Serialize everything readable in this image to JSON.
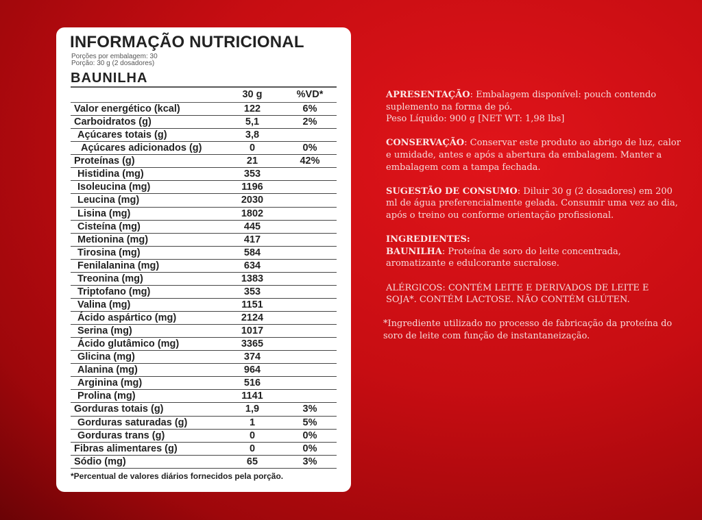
{
  "label": {
    "title": "INFORMAÇÃO NUTRICIONAL",
    "servings_per_package": "Porções por embalagem: 30",
    "serving": "Porção: 30 g (2 dosadores)",
    "flavor": "BAUNILHA",
    "col_amount": "30 g",
    "col_dv": "%VD*",
    "rows": [
      {
        "name": "Valor energético (kcal)",
        "value": "122",
        "dv": "6%",
        "indent": 0
      },
      {
        "name": "Carboidratos (g)",
        "value": "5,1",
        "dv": "2%",
        "indent": 0
      },
      {
        "name": "Açúcares totais (g)",
        "value": "3,8",
        "dv": "",
        "indent": 1
      },
      {
        "name": "Açúcares adicionados (g)",
        "value": "0",
        "dv": "0%",
        "indent": 2
      },
      {
        "name": "Proteínas (g)",
        "value": "21",
        "dv": "42%",
        "indent": 0
      },
      {
        "name": "Histidina (mg)",
        "value": "353",
        "dv": "",
        "indent": 1
      },
      {
        "name": "Isoleucina (mg)",
        "value": "1196",
        "dv": "",
        "indent": 1
      },
      {
        "name": "Leucina (mg)",
        "value": "2030",
        "dv": "",
        "indent": 1
      },
      {
        "name": "Lisina (mg)",
        "value": "1802",
        "dv": "",
        "indent": 1
      },
      {
        "name": "Cisteína (mg)",
        "value": "445",
        "dv": "",
        "indent": 1
      },
      {
        "name": "Metionina (mg)",
        "value": "417",
        "dv": "",
        "indent": 1
      },
      {
        "name": "Tirosina (mg)",
        "value": "584",
        "dv": "",
        "indent": 1
      },
      {
        "name": "Fenilalanina (mg)",
        "value": "634",
        "dv": "",
        "indent": 1
      },
      {
        "name": "Treonina (mg)",
        "value": "1383",
        "dv": "",
        "indent": 1
      },
      {
        "name": "Triptofano (mg)",
        "value": "353",
        "dv": "",
        "indent": 1
      },
      {
        "name": "Valina (mg)",
        "value": "1151",
        "dv": "",
        "indent": 1
      },
      {
        "name": "Ácido aspártico (mg)",
        "value": "2124",
        "dv": "",
        "indent": 1
      },
      {
        "name": "Serina (mg)",
        "value": "1017",
        "dv": "",
        "indent": 1
      },
      {
        "name": "Ácido glutâmico (mg)",
        "value": "3365",
        "dv": "",
        "indent": 1
      },
      {
        "name": "Glicina (mg)",
        "value": "374",
        "dv": "",
        "indent": 1
      },
      {
        "name": "Alanina (mg)",
        "value": "964",
        "dv": "",
        "indent": 1
      },
      {
        "name": "Arginina (mg)",
        "value": "516",
        "dv": "",
        "indent": 1
      },
      {
        "name": "Prolina (mg)",
        "value": "1141",
        "dv": "",
        "indent": 1
      },
      {
        "name": "Gorduras totais (g)",
        "value": "1,9",
        "dv": "3%",
        "indent": 0
      },
      {
        "name": "Gorduras saturadas (g)",
        "value": "1",
        "dv": "5%",
        "indent": 1
      },
      {
        "name": "Gorduras trans (g)",
        "value": "0",
        "dv": "0%",
        "indent": 1
      },
      {
        "name": "Fibras alimentares (g)",
        "value": "0",
        "dv": "0%",
        "indent": 0
      },
      {
        "name": "Sódio (mg)",
        "value": "65",
        "dv": "3%",
        "indent": 0
      }
    ],
    "footnote": "*Percentual de valores diários fornecidos pela porção."
  },
  "info": {
    "apresentacao_label": "APRESENTAÇÃO",
    "apresentacao_text": ": Embalagem disponível: pouch contendo suplemento na forma de pó.",
    "peso": "Peso Líquido: 900 g [NET WT: 1,98 lbs]",
    "conservacao_label": "CONSERVAÇÃO",
    "conservacao_text": ": Conservar este produto ao abrigo de luz, calor e umidade, antes e após a abertura da embalagem. Manter a embalagem com a tampa fechada.",
    "sugestao_label": "SUGESTÃO DE CONSUMO",
    "sugestao_text": ": Diluir 30 g (2 dosadores) em 200 ml de água preferencialmente gelada. Consumir uma vez ao dia, após o treino ou conforme orientação profissional.",
    "ingredientes_label": "INGREDIENTES:",
    "flavor_label": "BAUNILHA",
    "ingredientes_text": ": Proteína de soro do leite concentrada, aromatizante e edulcorante sucralose.",
    "alergicos": "ALÉRGICOS: CONTÉM LEITE E DERIVADOS DE LEITE E SOJA*. CONTÉM LACTOSE.  NÃO CONTÉM GLÚTEN.",
    "footnote": "*Ingrediente utilizado no processo de fabricação da proteína do soro de leite com função de instantaneização."
  },
  "colors": {
    "background": "#c70d12",
    "card": "#ffffff",
    "text_light": "#f6dada"
  }
}
